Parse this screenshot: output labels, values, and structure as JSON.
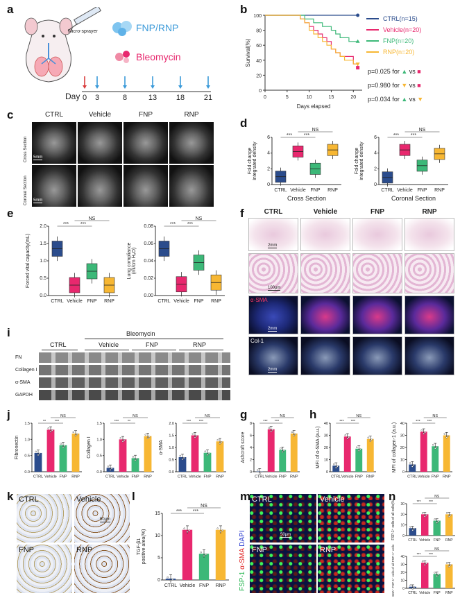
{
  "panels": {
    "a": "a",
    "b": "b",
    "c": "c",
    "d": "d",
    "e": "e",
    "f": "f",
    "g": "g",
    "h": "h",
    "i": "i",
    "j": "j",
    "k": "k",
    "l": "l",
    "m": "m",
    "n": "n"
  },
  "a": {
    "micro_sprayer": "Micro-sprayer",
    "fnp_rnp": "FNP/RNP",
    "bleomycin": "Bleomycin",
    "day_label": "Day",
    "days": [
      "0",
      "3",
      "8",
      "13",
      "18",
      "21"
    ]
  },
  "b": {
    "legend": [
      "CTRL(n=15)",
      "Vehicle(n=20)",
      "FNP(n=20)",
      "RNP(n=20)"
    ],
    "pvals": [
      {
        "p": "p=0.025",
        "for": "for",
        "vs": "vs"
      },
      {
        "p": "p=0.980",
        "for": "for",
        "vs": "vs"
      },
      {
        "p": "p=0.034",
        "for": "for",
        "vs": "vs"
      }
    ],
    "colors": {
      "CTRL": "#2b4c8c",
      "Vehicle": "#e8286e",
      "FNP": "#3cb878",
      "RNP": "#f7b733"
    }
  },
  "c": {
    "groups": [
      "CTRL",
      "Vehicle",
      "FNP",
      "RNP"
    ],
    "rows": [
      "Cross Section",
      "Coronal Section"
    ],
    "scale": [
      "5mm",
      "5mm"
    ]
  },
  "d": {
    "sections": [
      "Cross Section",
      "Coronal Section"
    ],
    "ylabel_line1": "Fold change",
    "ylabel_line2": "integrated density",
    "cats": [
      "CTRL",
      "Vehicle",
      "FNP",
      "RNP"
    ],
    "sig": [
      "***",
      "***",
      "NS"
    ]
  },
  "e": {
    "ylabels": [
      "Forced vital capacity(mL)",
      "Lung compliance",
      "(ml/cm H₂O)"
    ],
    "cats": [
      "CTRL",
      "Vehicle",
      "FNP",
      "RNP"
    ],
    "sig": [
      "***",
      "***",
      "NS"
    ]
  },
  "f": {
    "groups": [
      "CTRL",
      "Vehicle",
      "FNP",
      "RNP"
    ],
    "stains": [
      "α-SMA",
      "Col-1"
    ],
    "scale": [
      "2mm",
      "100μm",
      "2mm",
      "2mm"
    ]
  },
  "i": {
    "ctrl": "CTRL",
    "bleo": "Bleomycin",
    "groups": [
      "Vehicle",
      "FNP",
      "RNP"
    ],
    "rows": [
      "FN",
      "Collagen I",
      "α-SMA",
      "GAPDH"
    ]
  },
  "j": {
    "ylabels": [
      "Fibronectin",
      "Collagen I",
      "α-SMA"
    ],
    "cats": [
      "CTRL",
      "Vehicle",
      "FNP",
      "RNP"
    ],
    "sig1": [
      "**",
      "***",
      "NS"
    ],
    "sig2": [
      "***",
      "**",
      "NS"
    ],
    "sig3": [
      "***",
      "***",
      "NS"
    ]
  },
  "g": {
    "ylabel": "Ashcroft score",
    "cats": [
      "CTRL",
      "Vehicle",
      "FNP",
      "RNP"
    ],
    "sig": [
      "***",
      "***",
      "NS"
    ]
  },
  "h": {
    "ylabels": [
      "MFI of α-SMA (a.u.)",
      "MFI of collagen-1 (a.u.)"
    ],
    "cats": [
      "CTRL",
      "Vehicle",
      "FNP",
      "RNP"
    ],
    "sig": [
      "***",
      "***",
      "NS"
    ]
  },
  "k": {
    "groups": [
      "CTRL",
      "Vehicle",
      "FNP",
      "RNP"
    ],
    "scale": "50μm"
  },
  "l": {
    "ylabel1": "TGF-β1",
    "ylabel2": "positive area(%)",
    "cats": [
      "CTRL",
      "Vehicle",
      "FNP",
      "RNP"
    ],
    "sig": [
      "***",
      "***",
      "NS"
    ]
  },
  "m": {
    "groups": [
      "CTRL",
      "Vehicle",
      "FNP",
      "RNP"
    ],
    "stain_fsp": "FSP-1",
    "stain_asma": "α-SMA",
    "stain_dapi": "DAPI",
    "scale": "50μm"
  },
  "n": {
    "ylabel1": "FSP-1⁺ cells of all cells(%)",
    "ylabel2": "α-SMA⁺ FSP-1⁺ cells of all FSP-1⁺ cells",
    "cats": [
      "CTRL",
      "Vehicle",
      "FNP",
      "RNP"
    ],
    "sig": [
      "***",
      "***",
      "NS"
    ]
  },
  "chart_data": [
    {
      "type": "line",
      "panel": "b",
      "xlabel": "Days elapsed",
      "ylabel": "Survival(%)",
      "xlim": [
        0,
        22
      ],
      "ylim": [
        0,
        100
      ],
      "xticks": [
        "0",
        "5",
        "10",
        "15",
        "20"
      ],
      "yticks": [
        "0",
        "20",
        "40",
        "60",
        "80",
        "100"
      ],
      "series": [
        {
          "name": "CTRL(n=15)",
          "x": [
            0,
            21
          ],
          "y": [
            100,
            100
          ]
        },
        {
          "name": "Vehicle(n=20)",
          "x": [
            0,
            8,
            9,
            10,
            11,
            12,
            13,
            14,
            15,
            16,
            17,
            18,
            19,
            20,
            21
          ],
          "y": [
            100,
            95,
            90,
            85,
            80,
            75,
            70,
            65,
            55,
            50,
            45,
            45,
            45,
            35,
            30
          ]
        },
        {
          "name": "FNP(n=20)",
          "x": [
            0,
            9,
            10,
            11,
            12,
            13,
            14,
            15,
            16,
            17,
            18,
            19,
            20,
            21
          ],
          "y": [
            100,
            95,
            95,
            90,
            90,
            85,
            85,
            80,
            75,
            70,
            70,
            65,
            65,
            65
          ]
        },
        {
          "name": "RNP(n=20)",
          "x": [
            0,
            8,
            9,
            10,
            11,
            12,
            13,
            14,
            15,
            16,
            17,
            18,
            19,
            20,
            21
          ],
          "y": [
            100,
            95,
            90,
            80,
            75,
            70,
            65,
            60,
            55,
            50,
            45,
            40,
            40,
            35,
            35
          ]
        }
      ]
    },
    {
      "type": "box",
      "panel": "d-cross",
      "categories": [
        "CTRL",
        "Vehicle",
        "FNP",
        "RNP"
      ],
      "ylim": [
        0,
        6
      ],
      "yticks": [
        "0",
        "2",
        "4",
        "6"
      ],
      "values": [
        1.0,
        4.2,
        2.0,
        4.4
      ]
    },
    {
      "type": "box",
      "panel": "d-coronal",
      "categories": [
        "CTRL",
        "Vehicle",
        "FNP",
        "RNP"
      ],
      "ylim": [
        0,
        6
      ],
      "yticks": [
        "0",
        "2",
        "4",
        "6"
      ],
      "values": [
        0.9,
        4.4,
        2.4,
        3.9
      ]
    },
    {
      "type": "box",
      "panel": "e-fvc",
      "categories": [
        "CTRL",
        "Vehicle",
        "FNP",
        "RNP"
      ],
      "ylim": [
        0,
        2.0
      ],
      "yticks": [
        "0.0",
        "0.5",
        "1.0",
        "1.5",
        "2.0"
      ],
      "values": [
        1.35,
        0.3,
        0.7,
        0.3
      ]
    },
    {
      "type": "box",
      "panel": "e-compliance",
      "categories": [
        "CTRL",
        "Vehicle",
        "FNP",
        "RNP"
      ],
      "ylim": [
        0,
        0.08
      ],
      "yticks": [
        "0.00",
        "0.02",
        "0.04",
        "0.06",
        "0.08"
      ],
      "values": [
        0.054,
        0.013,
        0.038,
        0.015
      ]
    },
    {
      "type": "bar",
      "panel": "j-fn",
      "categories": [
        "CTRL",
        "Vehicle",
        "FNP",
        "RNP"
      ],
      "ylim": [
        0,
        1.5
      ],
      "yticks": [
        "0.0",
        "0.5",
        "1.0",
        "1.5"
      ],
      "values": [
        0.58,
        1.3,
        0.82,
        1.18
      ]
    },
    {
      "type": "bar",
      "panel": "j-col",
      "categories": [
        "CTRL",
        "Vehicle",
        "FNP",
        "RNP"
      ],
      "ylim": [
        0,
        1.5
      ],
      "yticks": [
        "0.0",
        "0.5",
        "1.0",
        "1.5"
      ],
      "values": [
        0.12,
        1.0,
        0.42,
        1.1
      ]
    },
    {
      "type": "bar",
      "panel": "j-asma",
      "categories": [
        "CTRL",
        "Vehicle",
        "FNP",
        "RNP"
      ],
      "ylim": [
        0,
        2.0
      ],
      "yticks": [
        "0.0",
        "0.5",
        "1.0",
        "1.5",
        "2.0"
      ],
      "values": [
        0.6,
        1.5,
        0.78,
        1.25
      ]
    },
    {
      "type": "bar",
      "panel": "g",
      "categories": [
        "CTRL",
        "Vehicle",
        "FNP",
        "RNP"
      ],
      "ylim": [
        0,
        8
      ],
      "yticks": [
        "0",
        "2",
        "4",
        "6",
        "8"
      ],
      "values": [
        0.05,
        7.0,
        3.6,
        6.3
      ]
    },
    {
      "type": "bar",
      "panel": "h-asma",
      "categories": [
        "CTRL",
        "Vehicle",
        "FNP",
        "RNP"
      ],
      "ylim": [
        0,
        40
      ],
      "yticks": [
        "0",
        "10",
        "20",
        "30",
        "40"
      ],
      "values": [
        5,
        29,
        19,
        27
      ]
    },
    {
      "type": "bar",
      "panel": "h-col",
      "categories": [
        "CTRL",
        "Vehicle",
        "FNP",
        "RNP"
      ],
      "ylim": [
        0,
        40
      ],
      "yticks": [
        "0",
        "10",
        "20",
        "30",
        "40"
      ],
      "values": [
        6,
        33,
        21,
        30
      ]
    },
    {
      "type": "bar",
      "panel": "l",
      "categories": [
        "CTRL",
        "Vehicle",
        "FNP",
        "RNP"
      ],
      "ylim": [
        0,
        15
      ],
      "yticks": [
        "0",
        "5",
        "10",
        "15"
      ],
      "values": [
        0.3,
        11.3,
        5.9,
        11.3
      ]
    },
    {
      "type": "bar",
      "panel": "n-1",
      "categories": [
        "CTRL",
        "Vehicle",
        "FNP",
        "RNP"
      ],
      "ylim": [
        0,
        30
      ],
      "yticks": [
        "0",
        "10",
        "20",
        "30"
      ],
      "values": [
        7,
        20,
        14,
        20
      ]
    },
    {
      "type": "bar",
      "panel": "n-2",
      "categories": [
        "CTRL",
        "Vehicle",
        "FNP",
        "RNP"
      ],
      "ylim": [
        0,
        40
      ],
      "yticks": [
        "0",
        "10",
        "20",
        "30",
        "40"
      ],
      "values": [
        2,
        32,
        18,
        30
      ]
    }
  ]
}
